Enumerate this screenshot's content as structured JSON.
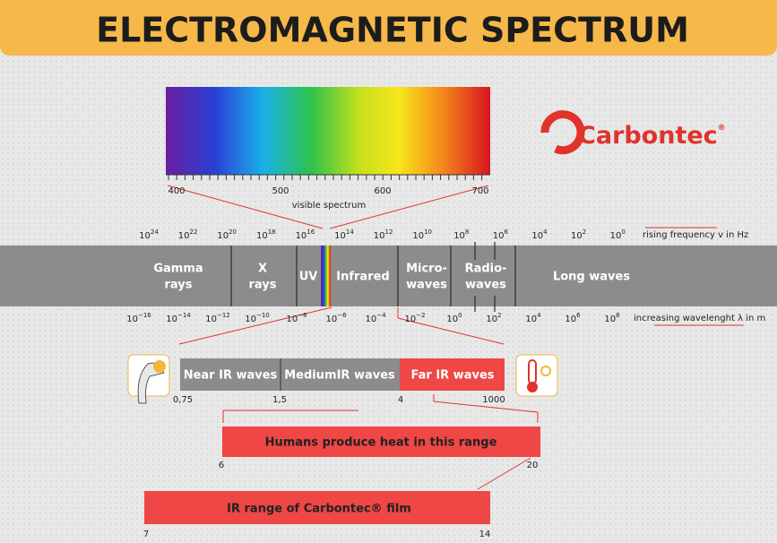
{
  "header": {
    "title": "ELECTROMAGNETIC SPECTRUM"
  },
  "logo": {
    "name": "Carbontec",
    "mark": "®"
  },
  "visible_spectrum": {
    "ticks": [
      "400",
      "500",
      "600",
      "700"
    ],
    "label": "visible spectrum"
  },
  "frequency": {
    "ticks": [
      {
        "base": "10",
        "exp": "24"
      },
      {
        "base": "10",
        "exp": "22"
      },
      {
        "base": "10",
        "exp": "20"
      },
      {
        "base": "10",
        "exp": "18"
      },
      {
        "base": "10",
        "exp": "16"
      },
      {
        "base": "10",
        "exp": "14"
      },
      {
        "base": "10",
        "exp": "12"
      },
      {
        "base": "10",
        "exp": "10"
      },
      {
        "base": "10",
        "exp": "8"
      },
      {
        "base": "10",
        "exp": "6"
      },
      {
        "base": "10",
        "exp": "4"
      },
      {
        "base": "10",
        "exp": "2"
      },
      {
        "base": "10",
        "exp": "0"
      }
    ],
    "label": "rising frequency v in Hz"
  },
  "bands": [
    {
      "lines": [
        "Gamma",
        "rays"
      ]
    },
    {
      "lines": [
        "X",
        "rays"
      ]
    },
    {
      "lines": [
        "UV"
      ]
    },
    {
      "lines": [
        "Infrared"
      ]
    },
    {
      "lines": [
        "Micro-",
        "waves"
      ]
    },
    {
      "lines": [
        "Radio-",
        "waves"
      ]
    },
    {
      "lines": [
        "Long waves"
      ]
    }
  ],
  "wavelength": {
    "ticks": [
      {
        "base": "10",
        "exp": "−16"
      },
      {
        "base": "10",
        "exp": "−14"
      },
      {
        "base": "10",
        "exp": "−12"
      },
      {
        "base": "10",
        "exp": "−10"
      },
      {
        "base": "10",
        "exp": "−8"
      },
      {
        "base": "10",
        "exp": "−6"
      },
      {
        "base": "10",
        "exp": "−4"
      },
      {
        "base": "10",
        "exp": "−2"
      },
      {
        "base": "10",
        "exp": "0"
      },
      {
        "base": "10",
        "exp": "2"
      },
      {
        "base": "10",
        "exp": "4"
      },
      {
        "base": "10",
        "exp": "6"
      },
      {
        "base": "10",
        "exp": "8"
      }
    ],
    "label": "increasing wavelenght λ in m"
  },
  "ir_bands": [
    "Near IR waves",
    "MediumIR waves",
    "Far IR waves"
  ],
  "ir_ticks": [
    "0,75",
    "1,5",
    "4",
    "1000"
  ],
  "humans": {
    "label": "Humans produce heat in this range",
    "ticks": [
      "6",
      "20"
    ]
  },
  "film": {
    "label": "IR range of Carbontec® film",
    "ticks": [
      "7",
      "14"
    ]
  }
}
